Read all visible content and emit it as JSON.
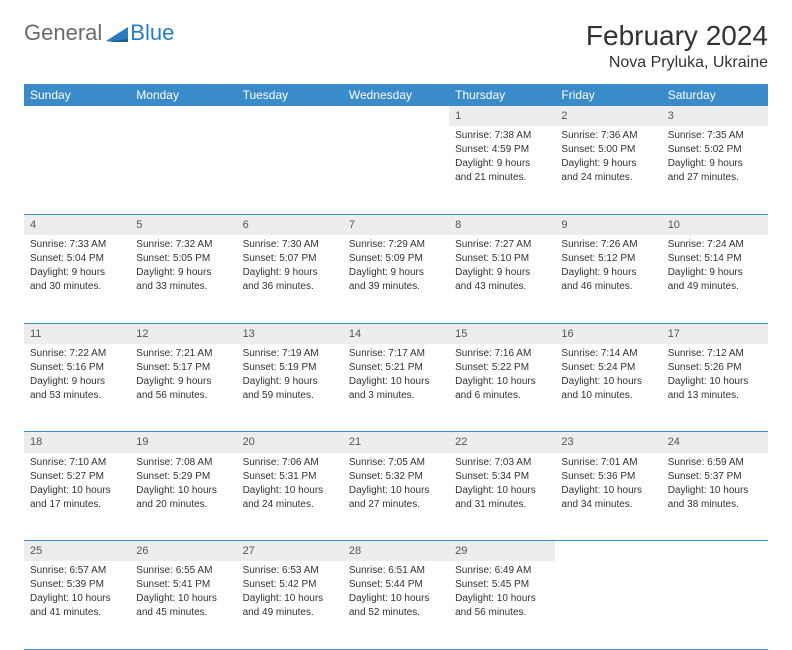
{
  "logo": {
    "part1": "General",
    "part2": "Blue"
  },
  "title": "February 2024",
  "location": "Nova Pryluka, Ukraine",
  "colors": {
    "header_bg": "#3a8bc9",
    "header_text": "#ffffff",
    "daynum_bg": "#ededed",
    "border": "#3a8bc9",
    "logo_gray": "#6a6a6a",
    "logo_blue": "#2b7bbf"
  },
  "weekdays": [
    "Sunday",
    "Monday",
    "Tuesday",
    "Wednesday",
    "Thursday",
    "Friday",
    "Saturday"
  ],
  "weeks": [
    [
      null,
      null,
      null,
      null,
      {
        "n": "1",
        "sr": "Sunrise: 7:38 AM",
        "ss": "Sunset: 4:59 PM",
        "d1": "Daylight: 9 hours",
        "d2": "and 21 minutes."
      },
      {
        "n": "2",
        "sr": "Sunrise: 7:36 AM",
        "ss": "Sunset: 5:00 PM",
        "d1": "Daylight: 9 hours",
        "d2": "and 24 minutes."
      },
      {
        "n": "3",
        "sr": "Sunrise: 7:35 AM",
        "ss": "Sunset: 5:02 PM",
        "d1": "Daylight: 9 hours",
        "d2": "and 27 minutes."
      }
    ],
    [
      {
        "n": "4",
        "sr": "Sunrise: 7:33 AM",
        "ss": "Sunset: 5:04 PM",
        "d1": "Daylight: 9 hours",
        "d2": "and 30 minutes."
      },
      {
        "n": "5",
        "sr": "Sunrise: 7:32 AM",
        "ss": "Sunset: 5:05 PM",
        "d1": "Daylight: 9 hours",
        "d2": "and 33 minutes."
      },
      {
        "n": "6",
        "sr": "Sunrise: 7:30 AM",
        "ss": "Sunset: 5:07 PM",
        "d1": "Daylight: 9 hours",
        "d2": "and 36 minutes."
      },
      {
        "n": "7",
        "sr": "Sunrise: 7:29 AM",
        "ss": "Sunset: 5:09 PM",
        "d1": "Daylight: 9 hours",
        "d2": "and 39 minutes."
      },
      {
        "n": "8",
        "sr": "Sunrise: 7:27 AM",
        "ss": "Sunset: 5:10 PM",
        "d1": "Daylight: 9 hours",
        "d2": "and 43 minutes."
      },
      {
        "n": "9",
        "sr": "Sunrise: 7:26 AM",
        "ss": "Sunset: 5:12 PM",
        "d1": "Daylight: 9 hours",
        "d2": "and 46 minutes."
      },
      {
        "n": "10",
        "sr": "Sunrise: 7:24 AM",
        "ss": "Sunset: 5:14 PM",
        "d1": "Daylight: 9 hours",
        "d2": "and 49 minutes."
      }
    ],
    [
      {
        "n": "11",
        "sr": "Sunrise: 7:22 AM",
        "ss": "Sunset: 5:16 PM",
        "d1": "Daylight: 9 hours",
        "d2": "and 53 minutes."
      },
      {
        "n": "12",
        "sr": "Sunrise: 7:21 AM",
        "ss": "Sunset: 5:17 PM",
        "d1": "Daylight: 9 hours",
        "d2": "and 56 minutes."
      },
      {
        "n": "13",
        "sr": "Sunrise: 7:19 AM",
        "ss": "Sunset: 5:19 PM",
        "d1": "Daylight: 9 hours",
        "d2": "and 59 minutes."
      },
      {
        "n": "14",
        "sr": "Sunrise: 7:17 AM",
        "ss": "Sunset: 5:21 PM",
        "d1": "Daylight: 10 hours",
        "d2": "and 3 minutes."
      },
      {
        "n": "15",
        "sr": "Sunrise: 7:16 AM",
        "ss": "Sunset: 5:22 PM",
        "d1": "Daylight: 10 hours",
        "d2": "and 6 minutes."
      },
      {
        "n": "16",
        "sr": "Sunrise: 7:14 AM",
        "ss": "Sunset: 5:24 PM",
        "d1": "Daylight: 10 hours",
        "d2": "and 10 minutes."
      },
      {
        "n": "17",
        "sr": "Sunrise: 7:12 AM",
        "ss": "Sunset: 5:26 PM",
        "d1": "Daylight: 10 hours",
        "d2": "and 13 minutes."
      }
    ],
    [
      {
        "n": "18",
        "sr": "Sunrise: 7:10 AM",
        "ss": "Sunset: 5:27 PM",
        "d1": "Daylight: 10 hours",
        "d2": "and 17 minutes."
      },
      {
        "n": "19",
        "sr": "Sunrise: 7:08 AM",
        "ss": "Sunset: 5:29 PM",
        "d1": "Daylight: 10 hours",
        "d2": "and 20 minutes."
      },
      {
        "n": "20",
        "sr": "Sunrise: 7:06 AM",
        "ss": "Sunset: 5:31 PM",
        "d1": "Daylight: 10 hours",
        "d2": "and 24 minutes."
      },
      {
        "n": "21",
        "sr": "Sunrise: 7:05 AM",
        "ss": "Sunset: 5:32 PM",
        "d1": "Daylight: 10 hours",
        "d2": "and 27 minutes."
      },
      {
        "n": "22",
        "sr": "Sunrise: 7:03 AM",
        "ss": "Sunset: 5:34 PM",
        "d1": "Daylight: 10 hours",
        "d2": "and 31 minutes."
      },
      {
        "n": "23",
        "sr": "Sunrise: 7:01 AM",
        "ss": "Sunset: 5:36 PM",
        "d1": "Daylight: 10 hours",
        "d2": "and 34 minutes."
      },
      {
        "n": "24",
        "sr": "Sunrise: 6:59 AM",
        "ss": "Sunset: 5:37 PM",
        "d1": "Daylight: 10 hours",
        "d2": "and 38 minutes."
      }
    ],
    [
      {
        "n": "25",
        "sr": "Sunrise: 6:57 AM",
        "ss": "Sunset: 5:39 PM",
        "d1": "Daylight: 10 hours",
        "d2": "and 41 minutes."
      },
      {
        "n": "26",
        "sr": "Sunrise: 6:55 AM",
        "ss": "Sunset: 5:41 PM",
        "d1": "Daylight: 10 hours",
        "d2": "and 45 minutes."
      },
      {
        "n": "27",
        "sr": "Sunrise: 6:53 AM",
        "ss": "Sunset: 5:42 PM",
        "d1": "Daylight: 10 hours",
        "d2": "and 49 minutes."
      },
      {
        "n": "28",
        "sr": "Sunrise: 6:51 AM",
        "ss": "Sunset: 5:44 PM",
        "d1": "Daylight: 10 hours",
        "d2": "and 52 minutes."
      },
      {
        "n": "29",
        "sr": "Sunrise: 6:49 AM",
        "ss": "Sunset: 5:45 PM",
        "d1": "Daylight: 10 hours",
        "d2": "and 56 minutes."
      },
      null,
      null
    ]
  ]
}
